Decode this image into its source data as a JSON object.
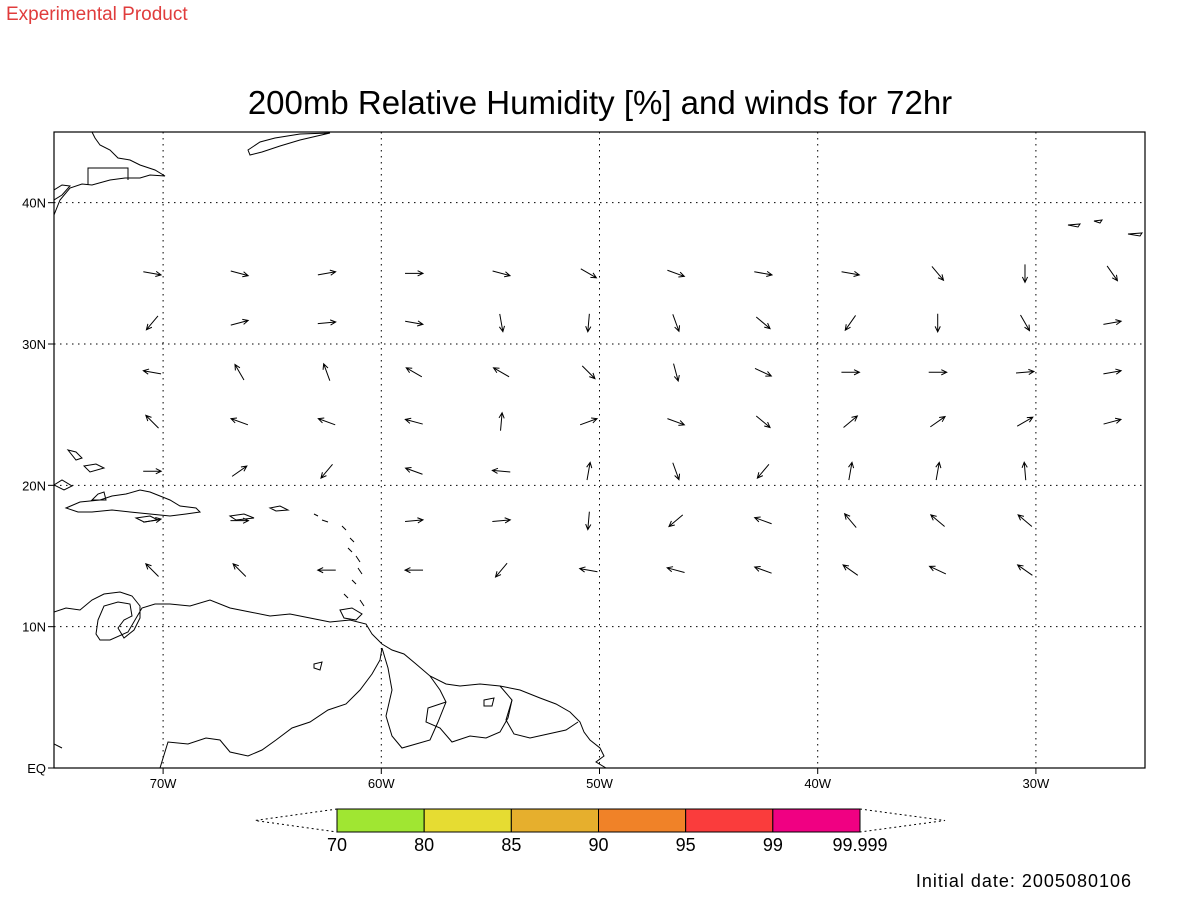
{
  "header": {
    "label": "Experimental Product"
  },
  "title": "200mb Relative Humidity [%] and winds for 72hr",
  "map": {
    "lonlim": [
      -75,
      -25
    ],
    "latlim": [
      0,
      45
    ],
    "lonticks": [
      {
        "value": -70,
        "label": "70W"
      },
      {
        "value": -60,
        "label": "60W"
      },
      {
        "value": -50,
        "label": "50W"
      },
      {
        "value": -40,
        "label": "40W"
      },
      {
        "value": -30,
        "label": "30W"
      }
    ],
    "latticks": [
      {
        "value": 0,
        "label": "EQ"
      },
      {
        "value": 10,
        "label": "10N"
      },
      {
        "value": 20,
        "label": "20N"
      },
      {
        "value": 30,
        "label": "30N"
      },
      {
        "value": 40,
        "label": "40N"
      }
    ],
    "grid": true
  },
  "wind": {
    "lons": [
      -70.5,
      -66.5,
      -62.5,
      -58.5,
      -54.5,
      -50.5,
      -46.5,
      -42.5,
      -38.5,
      -34.5,
      -30.5,
      -26.5
    ],
    "rows": [
      {
        "lat": 35,
        "dir": [
          -10,
          -15,
          10,
          0,
          -15,
          -30,
          -20,
          -10,
          -10,
          -50,
          -90,
          -55
        ]
      },
      {
        "lat": 31.5,
        "dir": [
          -130,
          15,
          5,
          -10,
          -80,
          -95,
          -70,
          -40,
          -125,
          -90,
          -60,
          10
        ]
      },
      {
        "lat": 28,
        "dir": [
          170,
          120,
          110,
          150,
          150,
          -45,
          -75,
          -25,
          0,
          0,
          5,
          10
        ]
      },
      {
        "lat": 24.5,
        "dir": [
          135,
          160,
          160,
          165,
          85,
          20,
          -20,
          -40,
          40,
          35,
          30,
          15
        ]
      },
      {
        "lat": 21,
        "dir": [
          0,
          35,
          -130,
          160,
          175,
          80,
          -70,
          -130,
          80,
          80,
          95,
          null
        ]
      },
      {
        "lat": 17.5,
        "dir": [
          10,
          0,
          null,
          5,
          5,
          -95,
          -140,
          160,
          130,
          140,
          140,
          null
        ]
      },
      {
        "lat": 14,
        "dir": [
          135,
          135,
          180,
          180,
          -130,
          170,
          165,
          160,
          145,
          155,
          145,
          null
        ]
      }
    ]
  },
  "colorbar": {
    "levels": [
      70,
      80,
      85,
      90,
      95,
      99,
      99.999
    ],
    "colors": [
      "#a0e632",
      "#e6dc32",
      "#e6af2d",
      "#f08228",
      "#fa3c3c",
      "#f00082"
    ]
  },
  "footer": "Initial date: 2005080106"
}
